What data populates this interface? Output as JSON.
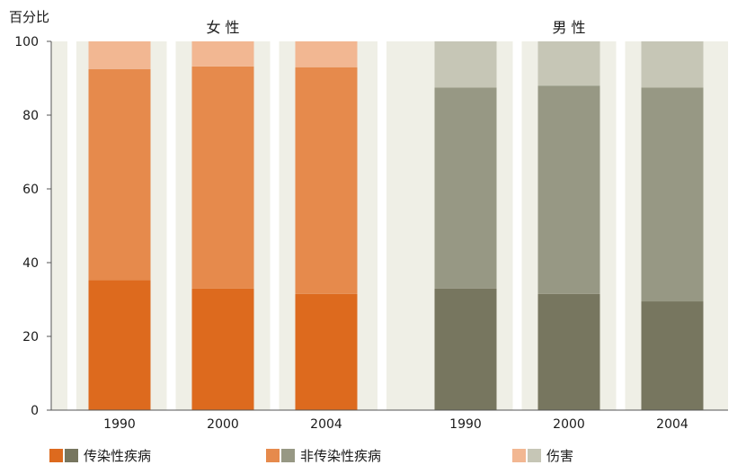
{
  "chart_data": {
    "type": "bar",
    "stacked": true,
    "ylabel": "百分比",
    "ylim": [
      0,
      100
    ],
    "yticks": [
      "0",
      "20",
      "40",
      "60",
      "80",
      "100"
    ],
    "groups": [
      {
        "title": "女 性",
        "categories": [
          "1990",
          "2000",
          "2004"
        ],
        "series": [
          {
            "name": "传染性疾病",
            "values": [
              35.3,
              33.0,
              31.5
            ]
          },
          {
            "name": "非传染性疾病",
            "values": [
              57.2,
              60.2,
              61.5
            ]
          },
          {
            "name": "伤害",
            "values": [
              7.5,
              6.8,
              7.0
            ]
          }
        ],
        "colors": [
          "#dd6a1e",
          "#e68a4c",
          "#f2b792"
        ]
      },
      {
        "title": "男 性",
        "categories": [
          "1990",
          "2000",
          "2004"
        ],
        "series": [
          {
            "name": "传染性疾病",
            "values": [
              33.0,
              31.5,
              29.5
            ]
          },
          {
            "name": "非传染性疾病",
            "values": [
              54.5,
              56.5,
              58.0
            ]
          },
          {
            "name": "伤害",
            "values": [
              12.5,
              12.0,
              12.5
            ]
          }
        ],
        "colors": [
          "#77765f",
          "#979884",
          "#c6c6b6"
        ]
      }
    ],
    "legend": [
      {
        "label": "传染性疾病",
        "colors": [
          "#dd6a1e",
          "#77765f"
        ]
      },
      {
        "label": "非传染性疾病",
        "colors": [
          "#e68a4c",
          "#979884"
        ]
      },
      {
        "label": "伤害",
        "colors": [
          "#f2b792",
          "#c6c6b6"
        ]
      }
    ],
    "grid": "vertical bands",
    "background": "#efefe6"
  }
}
